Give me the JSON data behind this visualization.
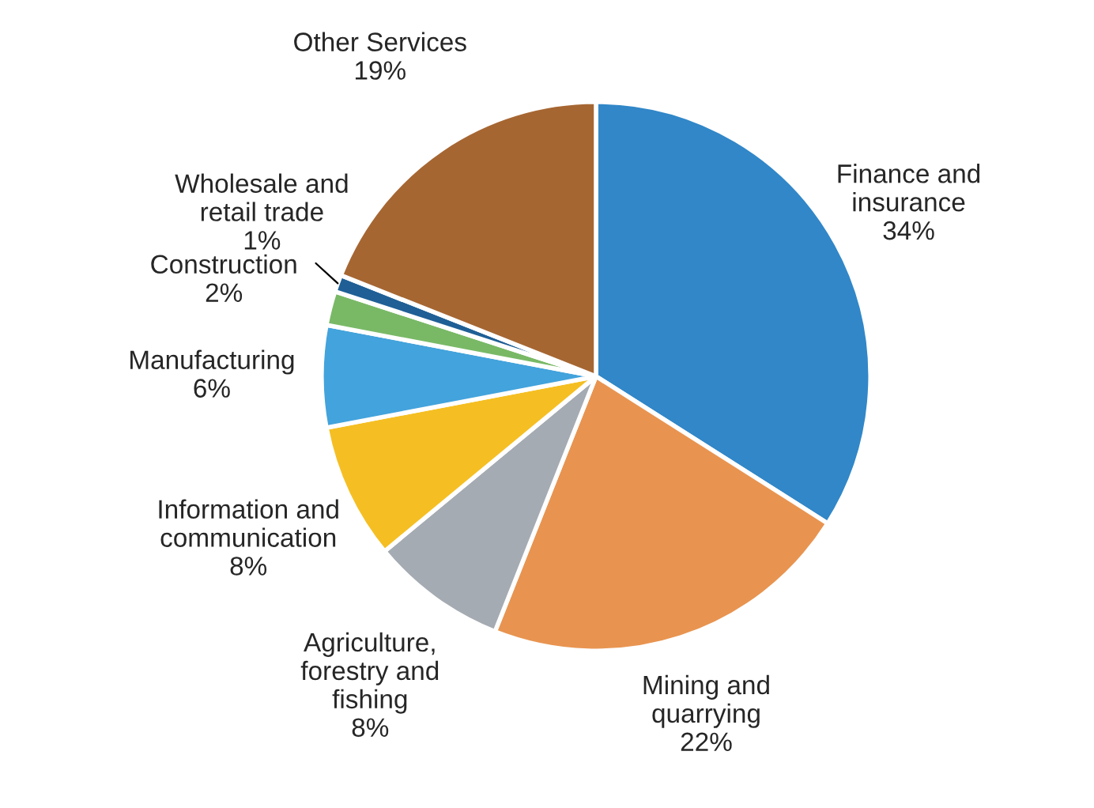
{
  "chart_data": {
    "type": "pie",
    "categories": [
      "Finance and\ninsurance",
      "Mining and\nquarrying",
      "Agriculture,\nforestry and\nfishing",
      "Information and\ncommunication",
      "Manufacturing",
      "Construction",
      "Wholesale and\nretail trade",
      "Other Services"
    ],
    "values": [
      34,
      22,
      8,
      8,
      6,
      2,
      1,
      19
    ],
    "colors": [
      "#3187c8",
      "#e89450",
      "#a5abb2",
      "#f5bf23",
      "#43a3dc",
      "#79b966",
      "#1f5f96",
      "#a66632"
    ],
    "value_labels": [
      "34%",
      "22%",
      "8%",
      "8%",
      "6%",
      "2%",
      "1%",
      "19%"
    ]
  }
}
